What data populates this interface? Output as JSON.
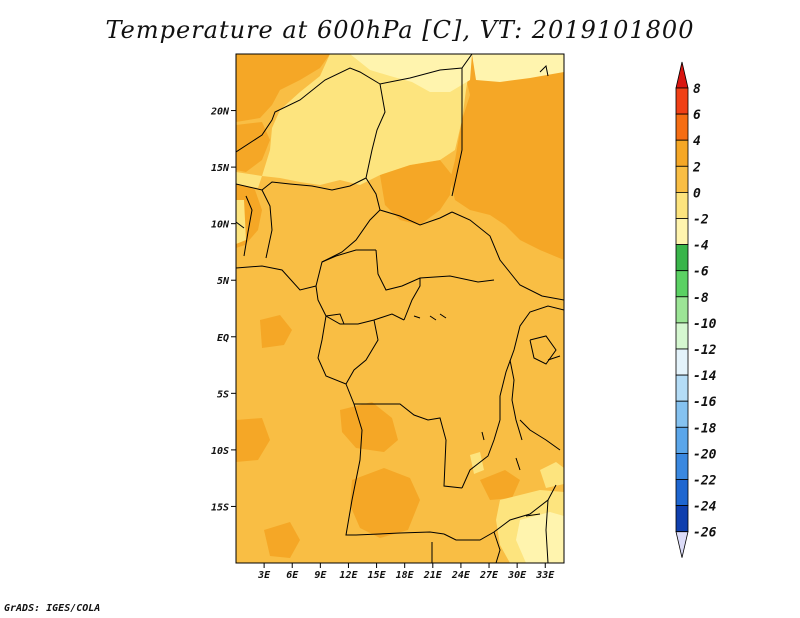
{
  "title": "Temperature at 600hPa [C], VT: 2019101800",
  "footer": "GrADS: IGES/COLA",
  "map": {
    "lon_range": [
      0,
      35
    ],
    "lat_range": [
      -20,
      25
    ],
    "lat_ticks": [
      {
        "value": 20,
        "label": "20N"
      },
      {
        "value": 15,
        "label": "15N"
      },
      {
        "value": 10,
        "label": "10N"
      },
      {
        "value": 5,
        "label": "5N"
      },
      {
        "value": 0,
        "label": "EQ"
      },
      {
        "value": -5,
        "label": "5S"
      },
      {
        "value": -10,
        "label": "10S"
      },
      {
        "value": -15,
        "label": "15S"
      }
    ],
    "lon_ticks": [
      {
        "value": 3,
        "label": "3E"
      },
      {
        "value": 6,
        "label": "6E"
      },
      {
        "value": 9,
        "label": "9E"
      },
      {
        "value": 12,
        "label": "12E"
      },
      {
        "value": 15,
        "label": "15E"
      },
      {
        "value": 18,
        "label": "18E"
      },
      {
        "value": 21,
        "label": "21E"
      },
      {
        "value": 24,
        "label": "24E"
      },
      {
        "value": 27,
        "label": "27E"
      },
      {
        "value": 30,
        "label": "30E"
      },
      {
        "value": 33,
        "label": "33E"
      }
    ],
    "colors": {
      "range_0_2": "#f9be44",
      "range_2_4": "#f5a726",
      "range_m2_0": "#fde47e",
      "range_m4_m2": "#fff4ae",
      "border": "#000000"
    }
  },
  "colorbar": {
    "levels": [
      {
        "label": "8",
        "color": "#e8201c"
      },
      {
        "label": "6",
        "color": "#f04016"
      },
      {
        "label": "4",
        "color": "#f56d13"
      },
      {
        "label": "2",
        "color": "#f5a726"
      },
      {
        "label": "0",
        "color": "#f9be44"
      },
      {
        "label": "-2",
        "color": "#fde47e"
      },
      {
        "label": "-4",
        "color": "#fff4ae"
      },
      {
        "label": "-6",
        "color": "#39b54a"
      },
      {
        "label": "-8",
        "color": "#5bd163"
      },
      {
        "label": "-10",
        "color": "#9ce596"
      },
      {
        "label": "-12",
        "color": "#d5f7d0"
      },
      {
        "label": "-14",
        "color": "#e4f3fb"
      },
      {
        "label": "-16",
        "color": "#b4dcf6"
      },
      {
        "label": "-18",
        "color": "#85c2f0"
      },
      {
        "label": "-20",
        "color": "#5ba6ea"
      },
      {
        "label": "-22",
        "color": "#3a88e0"
      },
      {
        "label": "-24",
        "color": "#1e66d0"
      },
      {
        "label": "-26",
        "color": "#0f3fae"
      }
    ],
    "top_color": "#d91510",
    "bottom_color": "#0a1370",
    "bottom_arrow_color": "#dcdcf8"
  }
}
